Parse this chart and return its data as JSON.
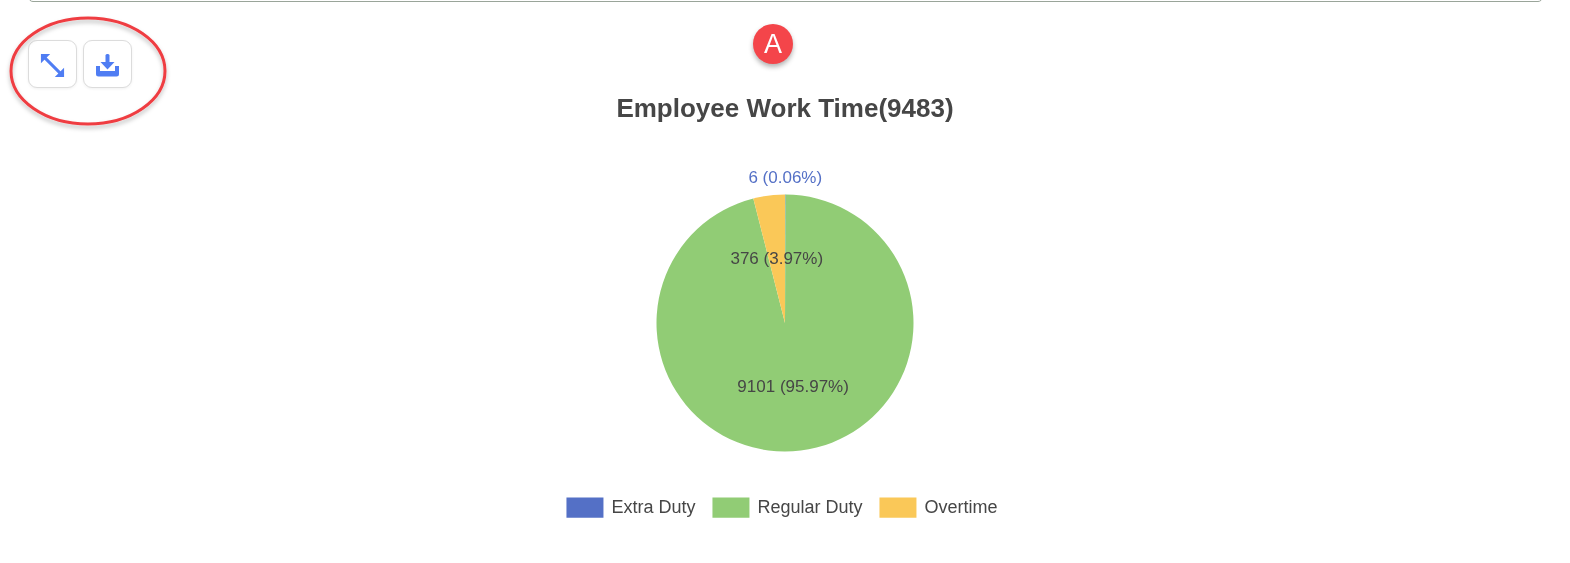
{
  "chart_data": {
    "type": "pie",
    "title": "Employee Work Time(9483)",
    "categories": [
      "Extra Duty",
      "Regular Duty",
      "Overtime"
    ],
    "values": [
      6,
      9101,
      376
    ],
    "colors": [
      "#5470c6",
      "#91cc75",
      "#fac858"
    ],
    "value_labels": [
      "6 (0.06%)",
      "9101 (95.97%)",
      "376 (3.97%)"
    ],
    "legend": "bottom",
    "annotations": [
      "A"
    ]
  }
}
